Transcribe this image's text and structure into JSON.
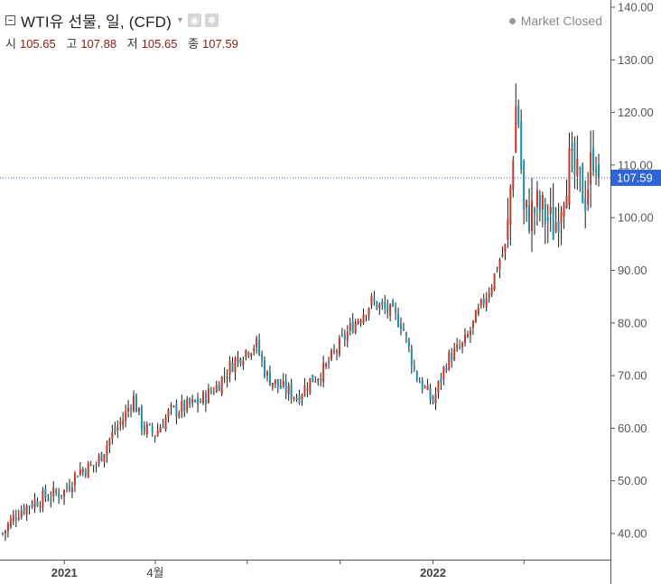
{
  "header": {
    "title": "WTI유 선물, 일, (CFD)",
    "ohlc": [
      {
        "label": "시",
        "value": "105.65"
      },
      {
        "label": "고",
        "value": "107.88"
      },
      {
        "label": "저",
        "value": "105.65"
      },
      {
        "label": "종",
        "value": "107.59"
      }
    ],
    "status": "Market Closed"
  },
  "chart_data": {
    "type": "candlestick",
    "title": "",
    "xlabel": "",
    "ylabel": "",
    "ylim": [
      35,
      142
    ],
    "y_ticks": [
      "140.00",
      "130.00",
      "120.00",
      "110.00",
      "100.00",
      "90.00",
      "80.00",
      "70.00",
      "60.00",
      "50.00",
      "40.00"
    ],
    "x_tick_labels": [
      "2021",
      "4월",
      "2022"
    ],
    "last_price": "107.59",
    "last_value": 107.59,
    "series": [
      {
        "kind": "close-path",
        "x": [
          "2020-11-01",
          "2020-11-15",
          "2020-12-01",
          "2020-12-15",
          "2021-01-01",
          "2021-01-15",
          "2021-02-01",
          "2021-02-15",
          "2021-03-01",
          "2021-03-10",
          "2021-03-20",
          "2021-04-01",
          "2021-04-15",
          "2021-05-01",
          "2021-05-15",
          "2021-06-01",
          "2021-06-15",
          "2021-07-01",
          "2021-07-10",
          "2021-07-20",
          "2021-08-01",
          "2021-08-20",
          "2021-09-01",
          "2021-09-15",
          "2021-10-01",
          "2021-10-15",
          "2021-11-01",
          "2021-11-20",
          "2021-12-01",
          "2021-12-15",
          "2022-01-01",
          "2022-01-15",
          "2022-02-01",
          "2022-02-15",
          "2022-03-01",
          "2022-03-08",
          "2022-03-15",
          "2022-03-25",
          "2022-04-01",
          "2022-04-15",
          "2022-05-01",
          "2022-05-15",
          "2022-06-01",
          "2022-06-10",
          "2022-06-14"
        ],
        "values": [
          40,
          44,
          46,
          47,
          48,
          52,
          53,
          58,
          62,
          66,
          60,
          59,
          63,
          64,
          65,
          68,
          72,
          75,
          76,
          70,
          68,
          66,
          69,
          71,
          76,
          80,
          84,
          82,
          80,
          70,
          65,
          73,
          76,
          82,
          88,
          92,
          95,
          124,
          100,
          102,
          98,
          110,
          104,
          114,
          107.59
        ]
      }
    ],
    "colors": {
      "up": "#c0392b",
      "down": "#1e8fa8",
      "last_price_line": "#3060d8",
      "price_label": "#2f64d6",
      "grid": "#e6e6e6"
    }
  }
}
